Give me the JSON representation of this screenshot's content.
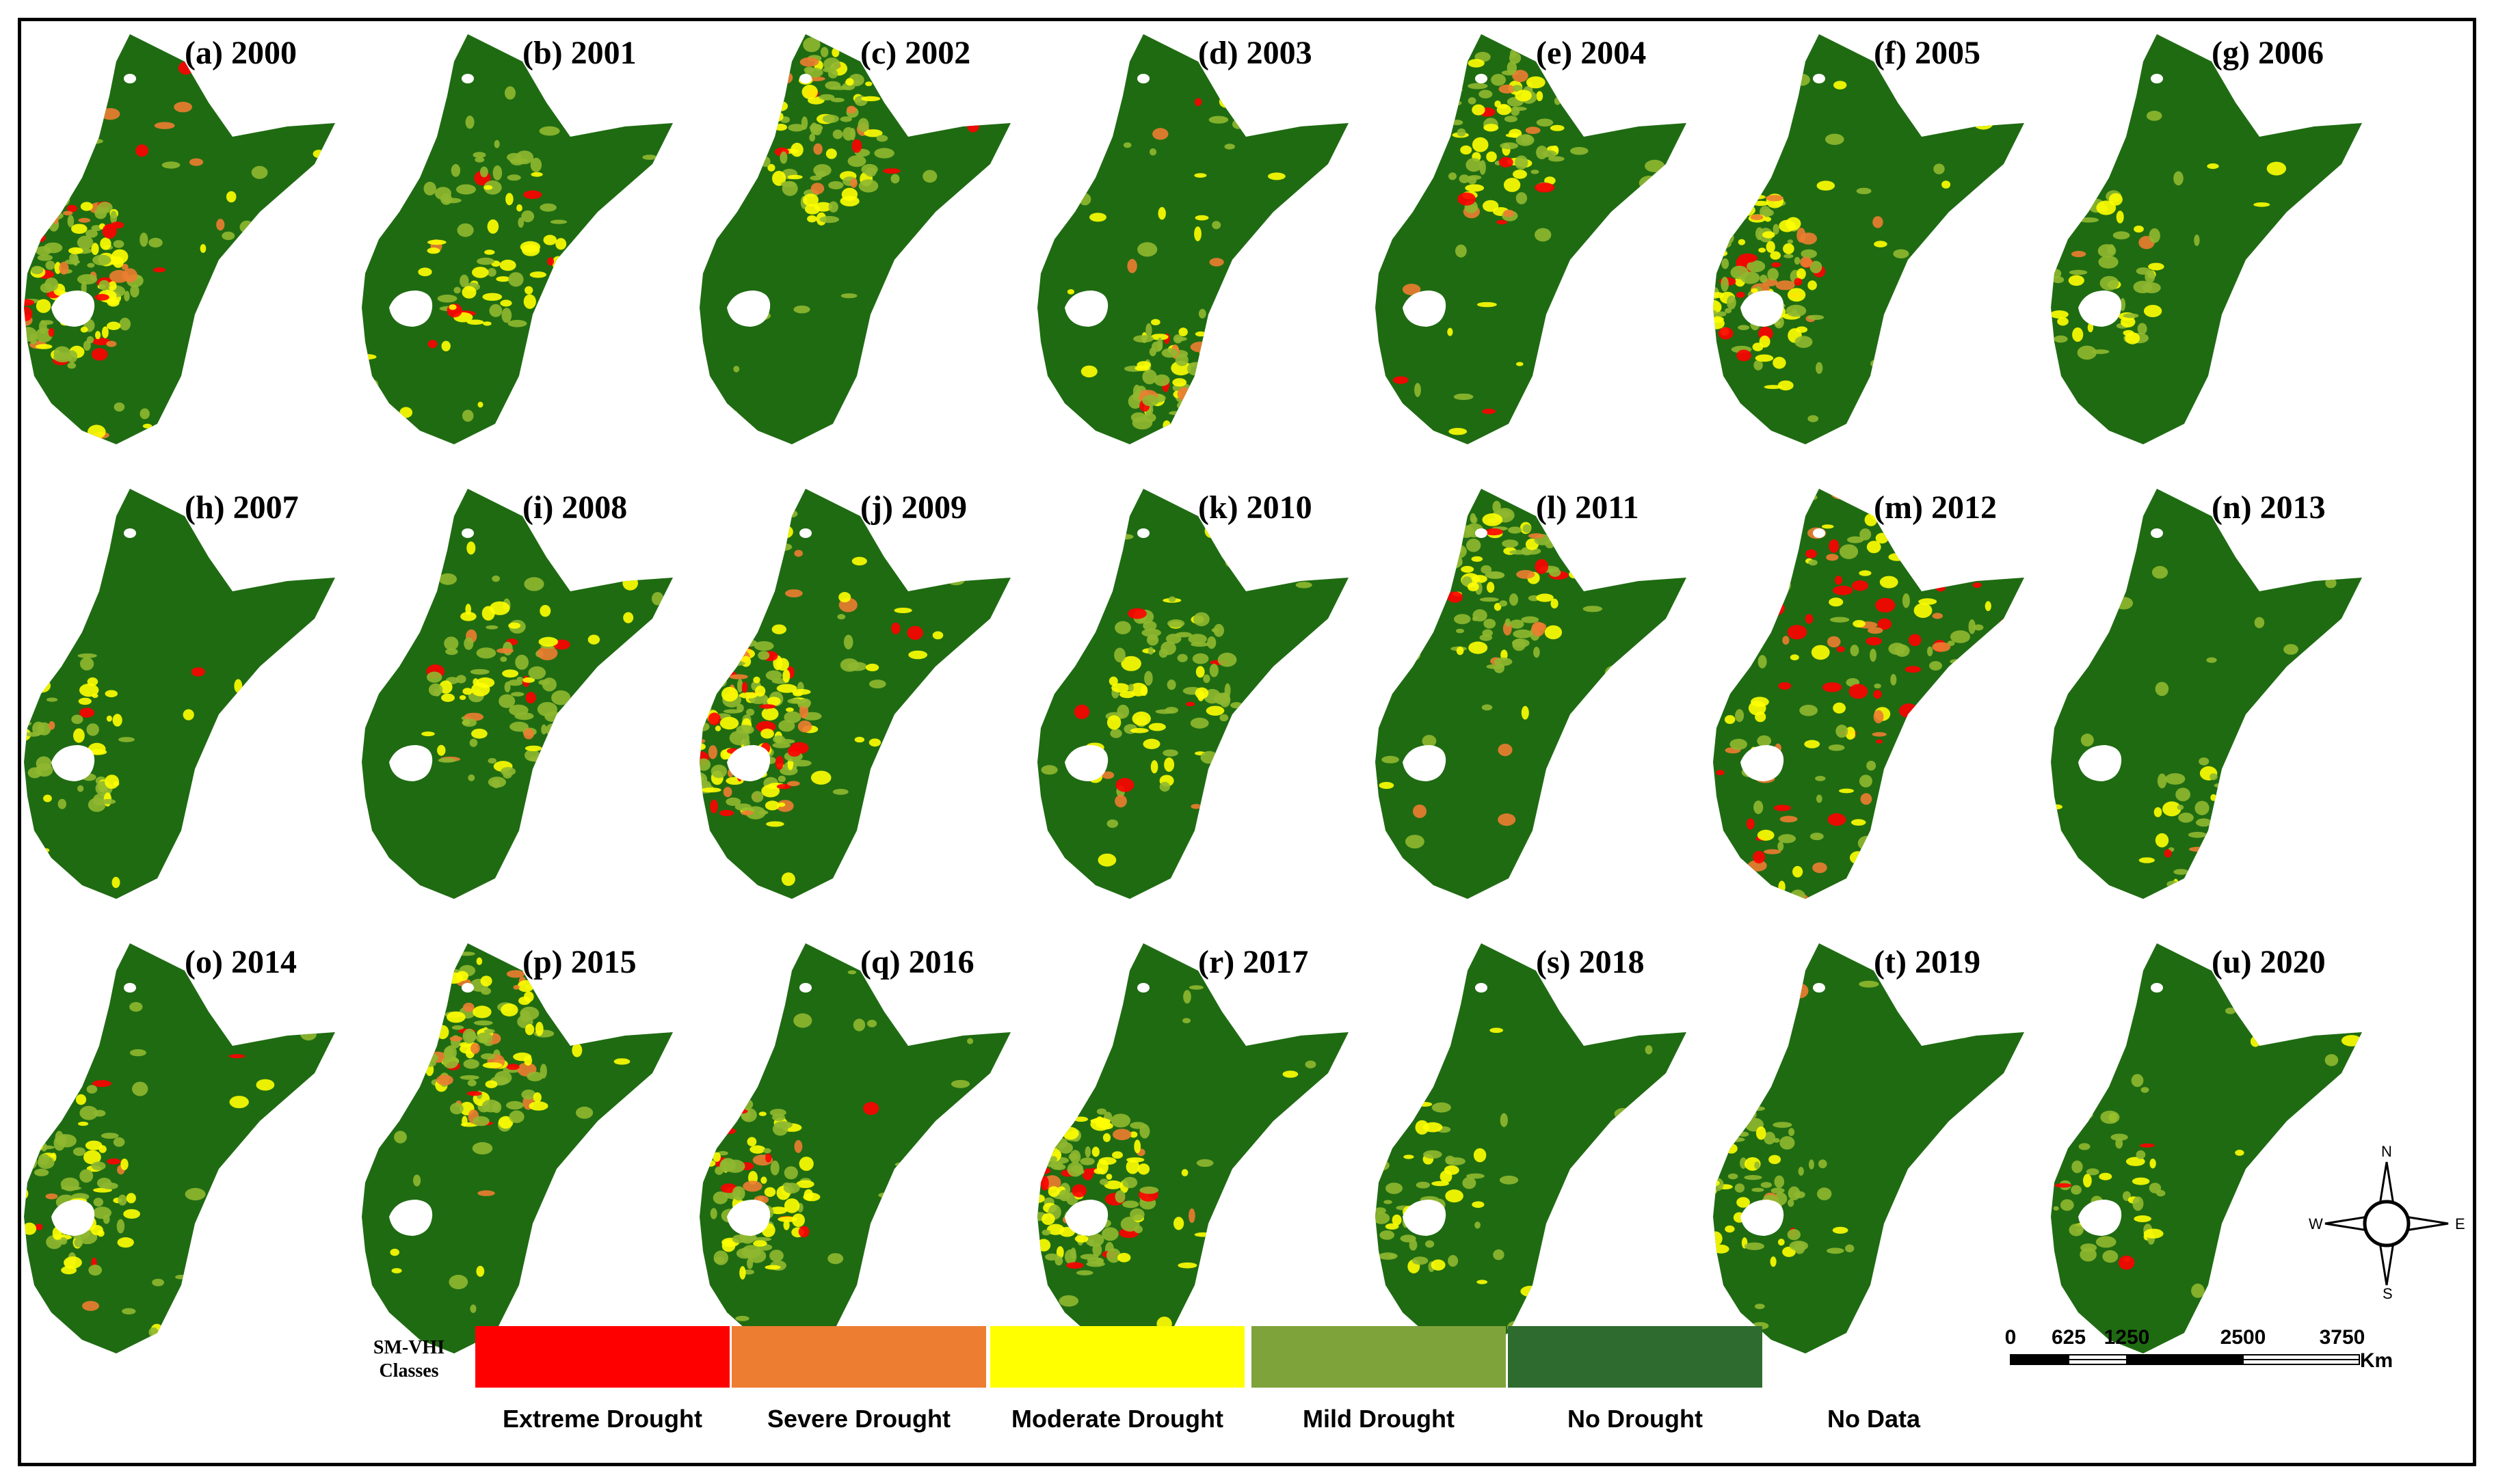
{
  "maps": [
    {
      "label": "(a) 2000",
      "intensity": 0.55,
      "hotspot": "west"
    },
    {
      "label": "(b) 2001",
      "intensity": 0.2,
      "hotspot": "center"
    },
    {
      "label": "(c) 2002",
      "intensity": 0.3,
      "hotspot": "north"
    },
    {
      "label": "(d) 2003",
      "intensity": 0.4,
      "hotspot": "south"
    },
    {
      "label": "(e) 2004",
      "intensity": 0.3,
      "hotspot": "north"
    },
    {
      "label": "(f) 2005",
      "intensity": 0.45,
      "hotspot": "west"
    },
    {
      "label": "(g) 2006",
      "intensity": 0.08,
      "hotspot": "west"
    },
    {
      "label": "(h) 2007",
      "intensity": 0.08,
      "hotspot": "west"
    },
    {
      "label": "(i) 2008",
      "intensity": 0.25,
      "hotspot": "center"
    },
    {
      "label": "(j) 2009",
      "intensity": 0.55,
      "hotspot": "west"
    },
    {
      "label": "(k) 2010",
      "intensity": 0.25,
      "hotspot": "center"
    },
    {
      "label": "(l) 2011",
      "intensity": 0.3,
      "hotspot": "north"
    },
    {
      "label": "(m) 2012",
      "intensity": 0.85,
      "hotspot": "all"
    },
    {
      "label": "(n) 2013",
      "intensity": 0.1,
      "hotspot": "south"
    },
    {
      "label": "(o) 2014",
      "intensity": 0.25,
      "hotspot": "west"
    },
    {
      "label": "(p) 2015",
      "intensity": 0.4,
      "hotspot": "north"
    },
    {
      "label": "(q) 2016",
      "intensity": 0.3,
      "hotspot": "west"
    },
    {
      "label": "(r) 2017",
      "intensity": 0.4,
      "hotspot": "west"
    },
    {
      "label": "(s) 2018",
      "intensity": 0.1,
      "hotspot": "west"
    },
    {
      "label": "(t) 2019",
      "intensity": 0.15,
      "hotspot": "west"
    },
    {
      "label": "(u) 2020",
      "intensity": 0.08,
      "hotspot": "west"
    }
  ],
  "legend": {
    "title": "SM-VHI Classes",
    "classes": [
      {
        "label": "Extreme Drought",
        "color": "#ff0000"
      },
      {
        "label": "Severe Drought",
        "color": "#ed7d31"
      },
      {
        "label": "Moderate Drought",
        "color": "#ffff00"
      },
      {
        "label": "Mild Drought",
        "color": "#7fa33b"
      },
      {
        "label": "No Drought",
        "color": "#2e6b2e"
      },
      {
        "label": "No Data",
        "color": "#ffffff"
      }
    ]
  },
  "scalebar": {
    "ticks": [
      "0",
      "625",
      "1250",
      "2500",
      "3750"
    ],
    "unit": "Km"
  },
  "compass": {
    "n": "N",
    "s": "S",
    "e": "E",
    "w": "W"
  },
  "colors": {
    "no_drought": "#1f6b12",
    "mild": "#8fb830",
    "moderate": "#ffff00",
    "severe": "#ed7d31",
    "extreme": "#ff0000"
  }
}
